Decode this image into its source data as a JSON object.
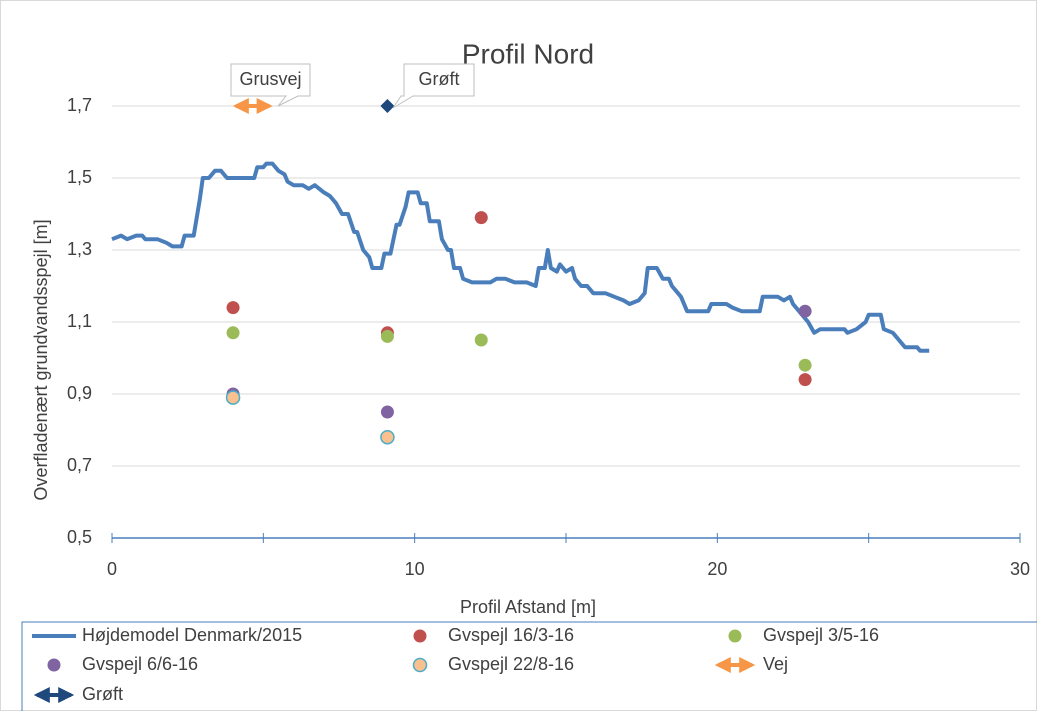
{
  "chart_data": {
    "type": "scatter",
    "title": "Profil Nord",
    "xlabel": "Profil Afstand [m]",
    "ylabel": "Overfladenært grundvandsspejl [m]",
    "xlim": [
      0,
      30
    ],
    "ylim": [
      0.5,
      1.7
    ],
    "xticks": [
      0,
      10,
      20,
      30
    ],
    "x_minor_ticks": [
      5,
      15,
      25
    ],
    "yticks": [
      {
        "value": 0.5,
        "label": "0,5"
      },
      {
        "value": 0.7,
        "label": "0,7"
      },
      {
        "value": 0.9,
        "label": "0,9"
      },
      {
        "value": 1.1,
        "label": "1,1"
      },
      {
        "value": 1.3,
        "label": "1,3"
      },
      {
        "value": 1.5,
        "label": "1,5"
      },
      {
        "value": 1.7,
        "label": "1,7"
      }
    ],
    "grid": true,
    "legend": "bottom",
    "annotations": [
      "Grusvej",
      "Grøft"
    ],
    "series": [
      {
        "name": "Højdemodel Denmark/2015",
        "style": "line",
        "color": "#4a7ebb",
        "x": [
          0,
          0.3,
          0.5,
          0.8,
          1.0,
          1.1,
          1.5,
          1.8,
          2.0,
          2.3,
          2.4,
          2.7,
          2.8,
          2.9,
          3.0,
          3.2,
          3.4,
          3.6,
          3.8,
          4.0,
          4.5,
          4.7,
          4.8,
          5.0,
          5.1,
          5.3,
          5.5,
          5.7,
          5.8,
          6.0,
          6.3,
          6.5,
          6.7,
          7.0,
          7.2,
          7.4,
          7.6,
          7.8,
          8.0,
          8.1,
          8.3,
          8.5,
          8.6,
          8.9,
          9.0,
          9.2,
          9.4,
          9.5,
          9.7,
          9.8,
          10.1,
          10.2,
          10.4,
          10.5,
          10.8,
          10.9,
          11.1,
          11.2,
          11.3,
          11.5,
          11.6,
          11.9,
          12.5,
          12.7,
          13.0,
          13.3,
          13.7,
          14.0,
          14.1,
          14.3,
          14.4,
          14.5,
          14.7,
          14.8,
          15.0,
          15.2,
          15.3,
          15.5,
          15.7,
          15.9,
          16.3,
          16.6,
          16.9,
          17.1,
          17.4,
          17.6,
          17.7,
          18.0,
          18.2,
          18.4,
          18.5,
          18.8,
          19.0,
          19.5,
          19.7,
          19.8,
          20.3,
          20.5,
          20.8,
          21.4,
          21.5,
          22.0,
          22.2,
          22.4,
          22.5,
          22.8,
          23.0,
          23.2,
          23.4,
          24.2,
          24.3,
          24.6,
          24.9,
          25.0,
          25.4,
          25.5,
          25.8,
          26.0,
          26.2,
          26.6,
          26.7,
          27.0
        ],
        "values": [
          1.33,
          1.34,
          1.33,
          1.34,
          1.34,
          1.33,
          1.33,
          1.32,
          1.31,
          1.31,
          1.34,
          1.34,
          1.39,
          1.44,
          1.5,
          1.5,
          1.52,
          1.52,
          1.5,
          1.5,
          1.5,
          1.5,
          1.53,
          1.53,
          1.54,
          1.54,
          1.52,
          1.51,
          1.49,
          1.48,
          1.48,
          1.47,
          1.48,
          1.46,
          1.45,
          1.43,
          1.4,
          1.4,
          1.35,
          1.35,
          1.3,
          1.28,
          1.25,
          1.25,
          1.29,
          1.29,
          1.37,
          1.37,
          1.42,
          1.46,
          1.46,
          1.43,
          1.43,
          1.38,
          1.38,
          1.33,
          1.3,
          1.3,
          1.25,
          1.25,
          1.22,
          1.21,
          1.21,
          1.22,
          1.22,
          1.21,
          1.21,
          1.2,
          1.25,
          1.25,
          1.3,
          1.25,
          1.24,
          1.26,
          1.24,
          1.25,
          1.22,
          1.2,
          1.2,
          1.18,
          1.18,
          1.17,
          1.16,
          1.15,
          1.16,
          1.18,
          1.25,
          1.25,
          1.22,
          1.22,
          1.2,
          1.17,
          1.13,
          1.13,
          1.13,
          1.15,
          1.15,
          1.14,
          1.13,
          1.13,
          1.17,
          1.17,
          1.16,
          1.17,
          1.15,
          1.12,
          1.1,
          1.07,
          1.08,
          1.08,
          1.07,
          1.08,
          1.1,
          1.12,
          1.12,
          1.08,
          1.07,
          1.05,
          1.03,
          1.03,
          1.02,
          1.02
        ]
      },
      {
        "name": "Gvspejl 16/3-16",
        "style": "marker",
        "color": "#c0504d",
        "x": [
          4.0,
          9.1,
          12.2,
          22.9
        ],
        "values": [
          1.14,
          1.07,
          1.39,
          0.94
        ]
      },
      {
        "name": "Gvspejl 3/5-16",
        "style": "marker",
        "color": "#9bbb59",
        "x": [
          4.0,
          9.1,
          12.2,
          22.9
        ],
        "values": [
          1.07,
          1.06,
          1.05,
          0.98
        ]
      },
      {
        "name": "Gvspejl 6/6-16",
        "style": "marker",
        "color": "#8064a2",
        "x": [
          4.0,
          9.1,
          22.9
        ],
        "values": [
          0.9,
          0.85,
          1.13
        ]
      },
      {
        "name": "Gvspejl 22/8-16",
        "style": "marker",
        "color": "#fac090",
        "edge_color": "#4bacc6",
        "x": [
          4.0,
          9.1
        ],
        "values": [
          0.89,
          0.78
        ]
      },
      {
        "name": "Vej",
        "style": "arrow",
        "color": "#f79646",
        "x": [
          3.9,
          5.4
        ],
        "values": [
          1.7,
          1.7
        ]
      },
      {
        "name": "Grøft",
        "style": "diamond",
        "color": "#1f497d",
        "x": [
          9.1
        ],
        "values": [
          1.7
        ]
      }
    ]
  }
}
